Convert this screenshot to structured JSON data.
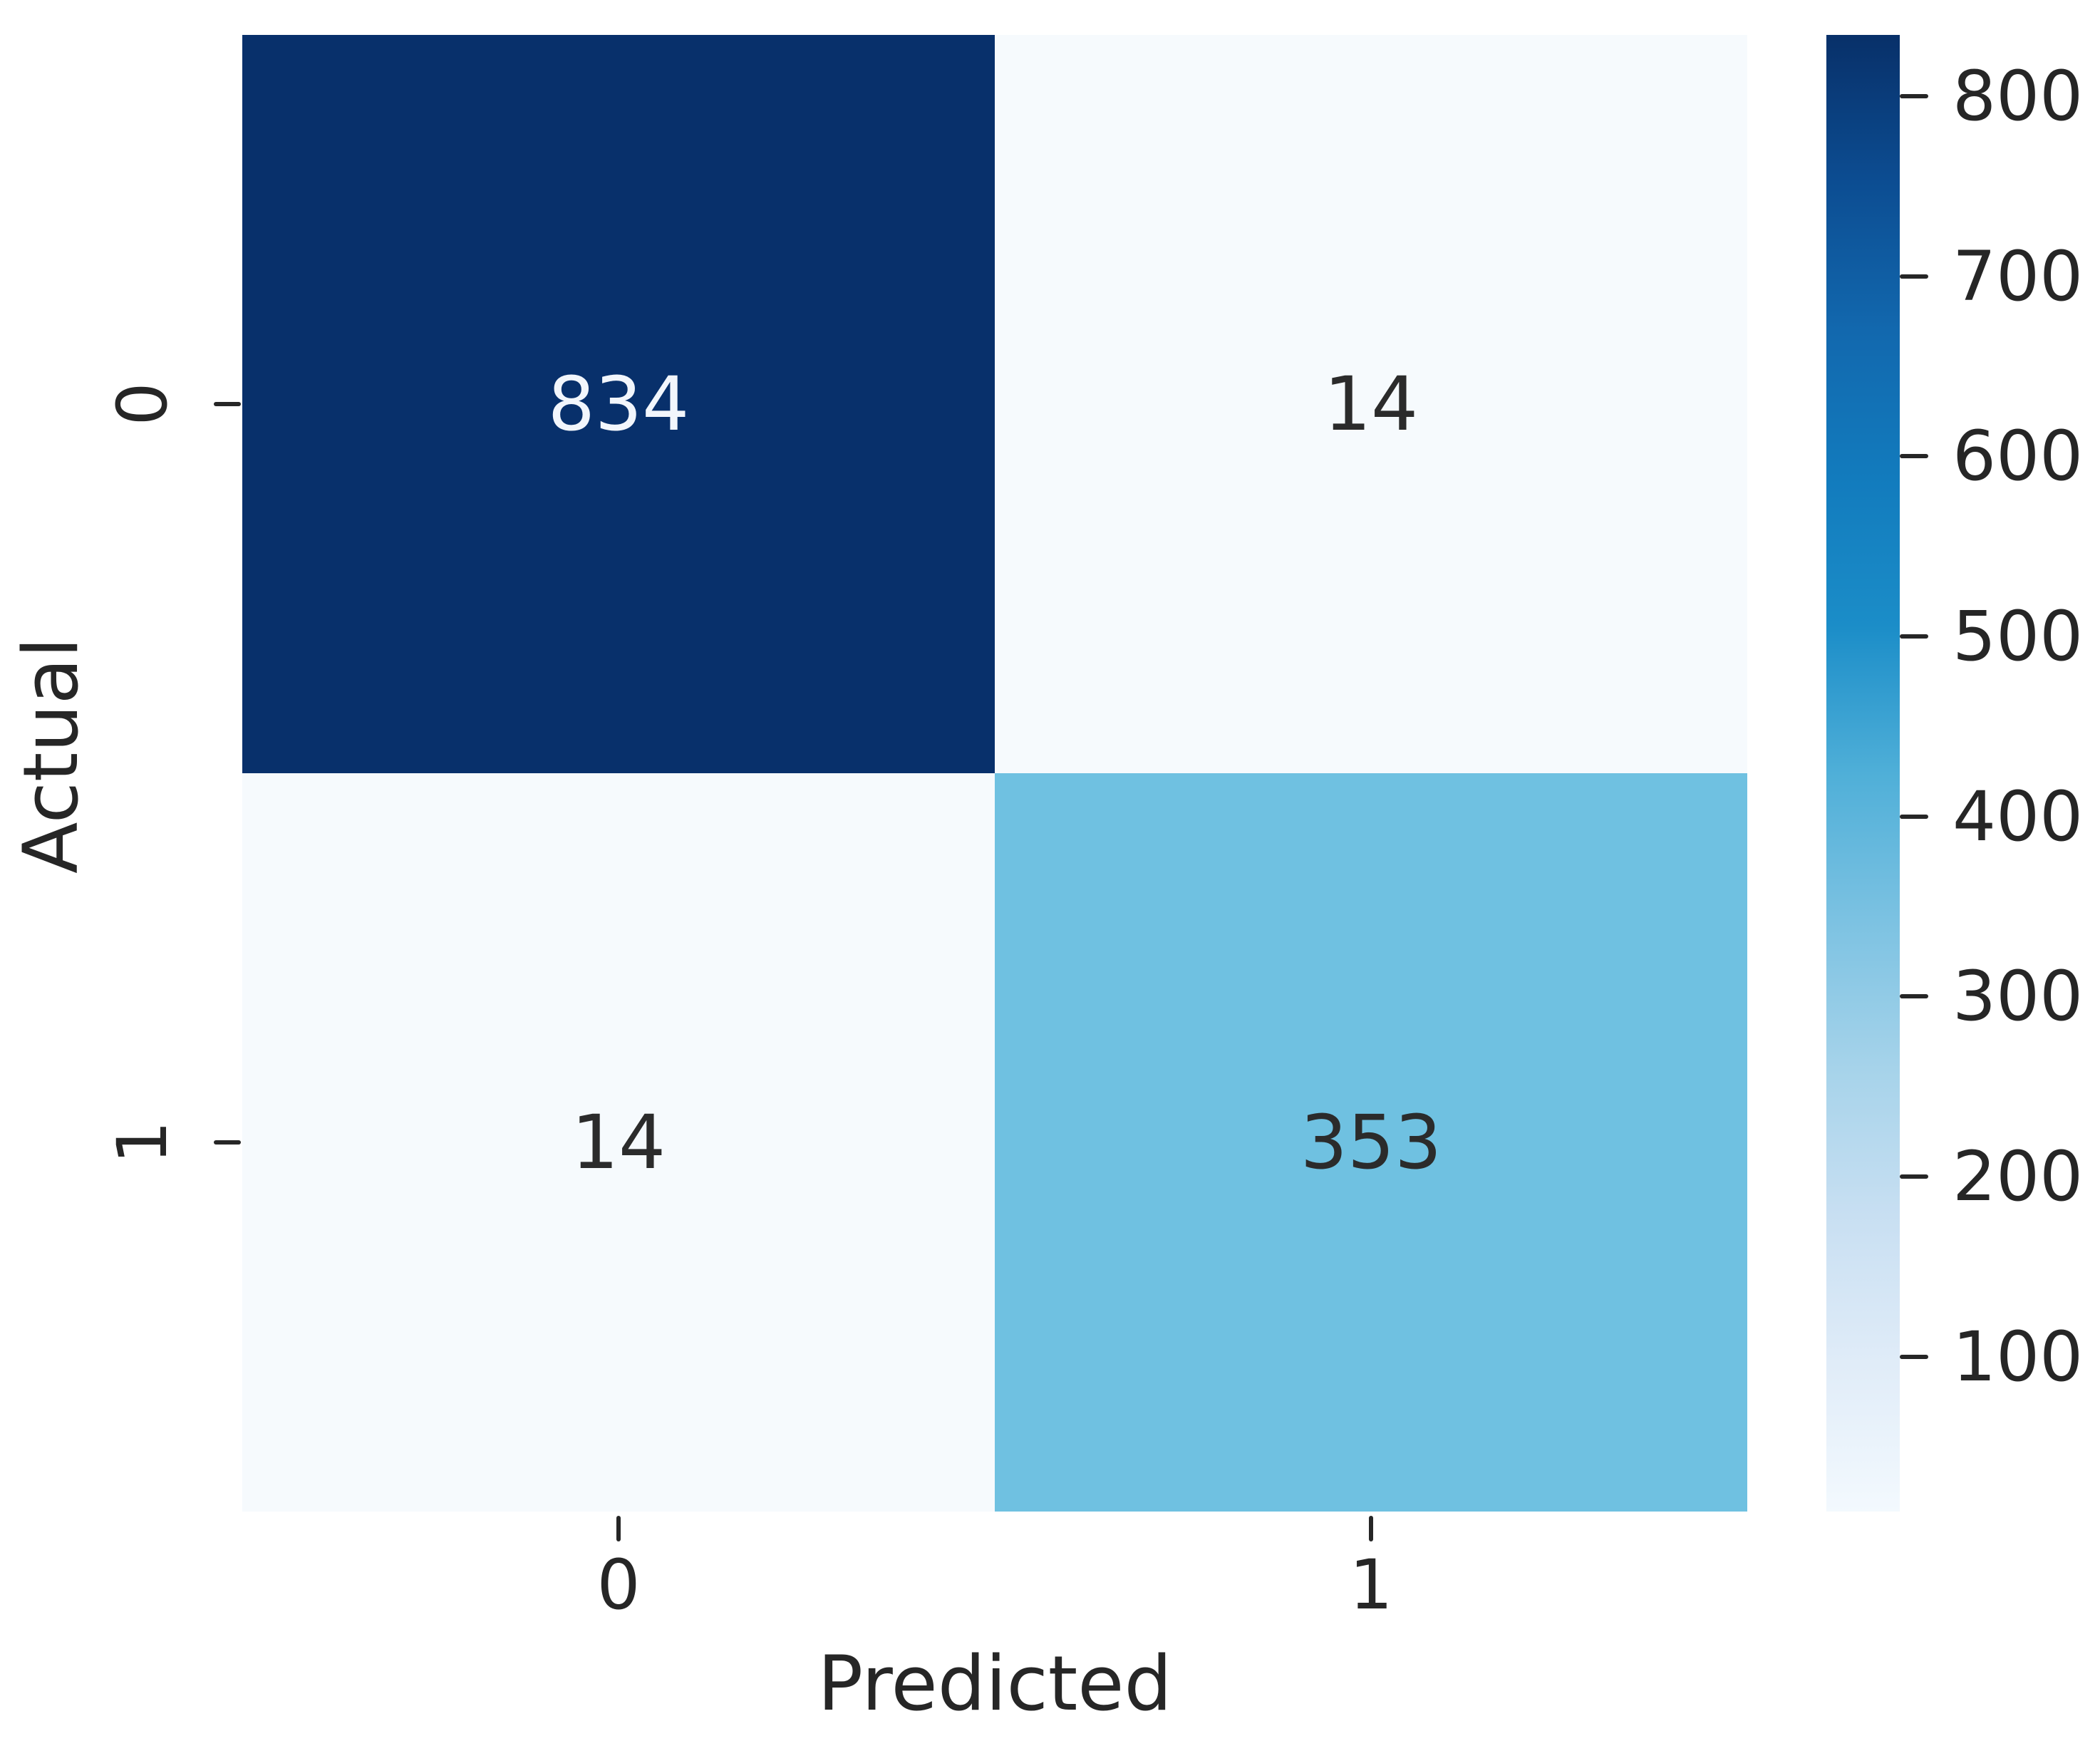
{
  "chart_data": {
    "type": "heatmap",
    "title": "",
    "xlabel": "Predicted",
    "ylabel": "Actual",
    "x_categories": [
      "0",
      "1"
    ],
    "y_categories": [
      "0",
      "1"
    ],
    "matrix": [
      [
        834,
        14
      ],
      [
        14,
        353
      ]
    ],
    "colormap": "Blues",
    "grid": false,
    "background": "#ffffff",
    "text_color": "#262626",
    "cell_colors": [
      [
        "#08306b",
        "#f6fafd"
      ],
      [
        "#f6fafd",
        "#6fc1e1"
      ]
    ],
    "annot_colors": [
      [
        "#f2f6fc",
        "#2b2b2b"
      ],
      [
        "#2b2b2b",
        "#2b2b2b"
      ]
    ],
    "colorbar": {
      "position": "right",
      "vmin": 14,
      "vmax": 834,
      "tick_labels": [
        "800",
        "700",
        "600",
        "500",
        "400",
        "300",
        "200",
        "100"
      ],
      "gradient_stops": [
        "#083069",
        "#0c4d92",
        "#1268ae",
        "#127bbd",
        "#1b8dc8",
        "#4fafd8",
        "#7cc2e2",
        "#a6d3ea",
        "#c8dff2",
        "#e0ecf8",
        "#f3f9fe"
      ]
    }
  }
}
